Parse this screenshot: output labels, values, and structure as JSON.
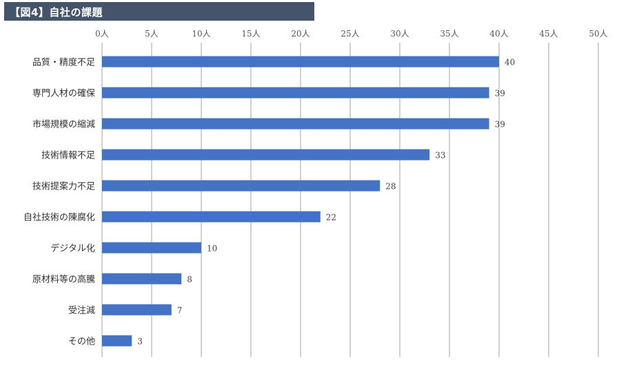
{
  "header": {
    "title": "【図4】自社の課題",
    "color": "#44546a"
  },
  "chart_data": {
    "type": "bar",
    "orientation": "horizontal",
    "title": "【図4】自社の課題",
    "categories": [
      "品質・精度不足",
      "専門人材の確保",
      "市場規模の縮減",
      "技術情報不足",
      "技術提案力不足",
      "自社技術の陳腐化",
      "デジタル化",
      "原材料等の高騰",
      "受注減",
      "その他"
    ],
    "values": [
      40,
      39,
      39,
      33,
      28,
      22,
      10,
      8,
      7,
      3
    ],
    "x_ticks": [
      "0人",
      "5人",
      "10人",
      "15人",
      "20人",
      "25人",
      "30人",
      "35人",
      "40人",
      "45人",
      "50人"
    ],
    "xlim": [
      0,
      50
    ],
    "grid": true,
    "axis_position": "top",
    "bar_color": "#4472c4",
    "grid_color": "#a6a6a6"
  }
}
